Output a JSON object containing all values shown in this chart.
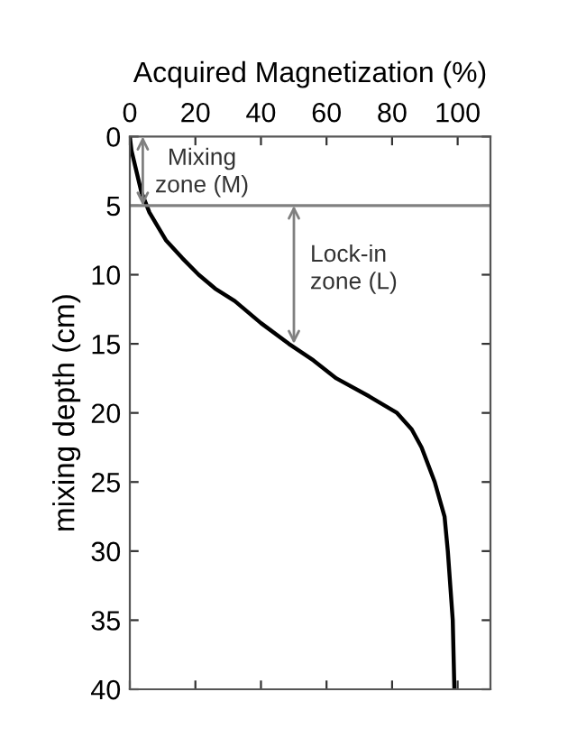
{
  "chart_data": {
    "type": "line",
    "xlabel": "Acquired Magnetization (%)",
    "ylabel": "mixing depth (cm)",
    "x": [
      0,
      0.5,
      2,
      3.5,
      6,
      11,
      16,
      21,
      26,
      32,
      40,
      48.5,
      56,
      63,
      73,
      81.5,
      86,
      89,
      93,
      96,
      97,
      98.5,
      99
    ],
    "series": [
      {
        "color": "#000000",
        "values": [
          0,
          1,
          2.5,
          4,
          5.5,
          7.5,
          8.8,
          10,
          11,
          11.9,
          13.5,
          15,
          16.2,
          17.5,
          18.8,
          20,
          21.2,
          22.5,
          25,
          27.5,
          30,
          35,
          40
        ]
      }
    ],
    "xlim": [
      0,
      110
    ],
    "xticks": [
      0,
      20,
      40,
      60,
      80,
      100
    ],
    "ylim": [
      40,
      0
    ],
    "yticks": [
      0,
      5,
      10,
      15,
      20,
      25,
      30,
      35,
      40
    ],
    "ref_lines": [
      {
        "axis": "y",
        "value": 5,
        "color": "#808080"
      }
    ],
    "annotations": [
      "Mixing\nzone (M)",
      "Lock-in\nzone (L)"
    ],
    "grid": false,
    "legend": false
  }
}
